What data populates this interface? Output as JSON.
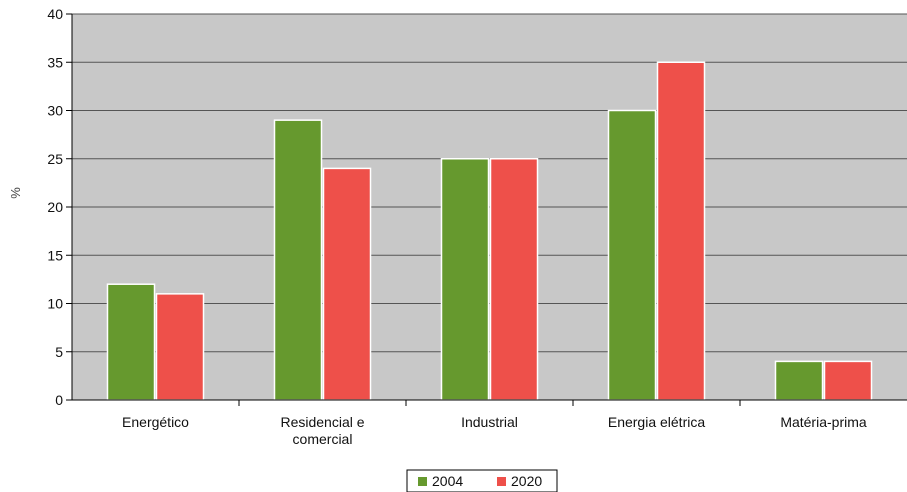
{
  "chart_data": {
    "type": "bar",
    "categories": [
      [
        "Energético"
      ],
      [
        "Residencial e",
        "comercial"
      ],
      [
        "Industrial"
      ],
      [
        "Energia elétrica"
      ],
      [
        "Matéria-prima"
      ]
    ],
    "series": [
      {
        "name": "2004",
        "values": [
          12,
          29,
          25,
          30,
          4
        ],
        "color": "#66992e"
      },
      {
        "name": "2020",
        "values": [
          11,
          24,
          25,
          35,
          4
        ],
        "color": "#ee504a"
      }
    ],
    "ylabel": "%",
    "ylim": [
      0,
      40
    ],
    "yticks": [
      0,
      5,
      10,
      15,
      20,
      25,
      30,
      35,
      40
    ],
    "grid": true,
    "legend": "bottom-center",
    "background": "#c8c8c8"
  }
}
